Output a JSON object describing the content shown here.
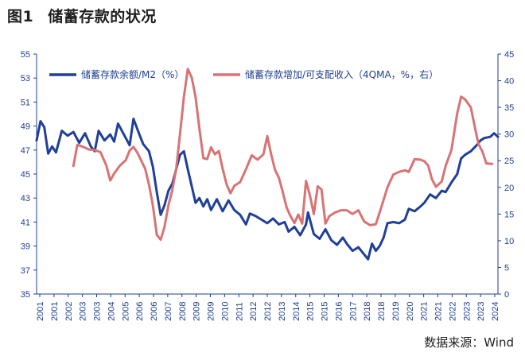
{
  "figure": {
    "number": "图1",
    "title": "储蓄存款的状况",
    "source": "数据来源：Wind"
  },
  "chart_data": {
    "type": "line",
    "x_ticks": [
      "2001",
      "2001",
      "2002",
      "2003",
      "2003",
      "2004",
      "2005",
      "2006",
      "2006",
      "2007",
      "2008",
      "2009",
      "2009",
      "2010",
      "2011",
      "2012",
      "2012",
      "2013",
      "2014",
      "2015",
      "2015",
      "2016",
      "2017",
      "2018",
      "2018",
      "2019",
      "2020",
      "2021",
      "2021",
      "2022",
      "2023",
      "2023",
      "2024"
    ],
    "y_left": {
      "ticks": [
        35,
        37,
        39,
        41,
        43,
        45,
        47,
        49,
        51,
        53,
        55
      ],
      "range": [
        35,
        55
      ]
    },
    "y_right": {
      "ticks": [
        0,
        5,
        10,
        15,
        20,
        25,
        30,
        35,
        40,
        45
      ],
      "range": [
        0,
        45
      ]
    },
    "x_range": [
      2001.0,
      2024.8
    ],
    "grid": false,
    "legend_placement": "top",
    "series": [
      {
        "name": "储蓄存款余额/M2（%）",
        "axis": "left",
        "color": "#1f3f99",
        "points": [
          [
            2001.0,
            47.8
          ],
          [
            2001.2,
            49.4
          ],
          [
            2001.4,
            48.9
          ],
          [
            2001.6,
            46.7
          ],
          [
            2001.8,
            47.3
          ],
          [
            2002.0,
            46.8
          ],
          [
            2002.3,
            48.6
          ],
          [
            2002.6,
            48.2
          ],
          [
            2002.9,
            48.5
          ],
          [
            2003.2,
            47.6
          ],
          [
            2003.5,
            48.4
          ],
          [
            2003.8,
            47.3
          ],
          [
            2004.0,
            46.9
          ],
          [
            2004.2,
            48.6
          ],
          [
            2004.5,
            47.8
          ],
          [
            2004.8,
            48.3
          ],
          [
            2005.0,
            47.7
          ],
          [
            2005.2,
            49.2
          ],
          [
            2005.5,
            48.3
          ],
          [
            2005.8,
            47.4
          ],
          [
            2006.0,
            49.6
          ],
          [
            2006.3,
            48.3
          ],
          [
            2006.5,
            47.5
          ],
          [
            2006.8,
            46.9
          ],
          [
            2007.0,
            45.6
          ],
          [
            2007.2,
            43.5
          ],
          [
            2007.4,
            41.6
          ],
          [
            2007.6,
            42.4
          ],
          [
            2007.8,
            43.6
          ],
          [
            2008.0,
            44.2
          ],
          [
            2008.2,
            45.4
          ],
          [
            2008.4,
            46.6
          ],
          [
            2008.6,
            46.9
          ],
          [
            2008.8,
            45.4
          ],
          [
            2009.0,
            44.0
          ],
          [
            2009.2,
            42.6
          ],
          [
            2009.4,
            43.0
          ],
          [
            2009.6,
            42.3
          ],
          [
            2009.8,
            42.9
          ],
          [
            2010.0,
            42.0
          ],
          [
            2010.3,
            42.9
          ],
          [
            2010.6,
            41.9
          ],
          [
            2010.9,
            42.8
          ],
          [
            2011.2,
            42.0
          ],
          [
            2011.5,
            41.6
          ],
          [
            2011.8,
            40.8
          ],
          [
            2012.0,
            41.7
          ],
          [
            2012.3,
            41.5
          ],
          [
            2012.6,
            41.2
          ],
          [
            2012.9,
            40.9
          ],
          [
            2013.2,
            41.3
          ],
          [
            2013.5,
            40.8
          ],
          [
            2013.8,
            41.0
          ],
          [
            2014.0,
            40.2
          ],
          [
            2014.3,
            40.6
          ],
          [
            2014.6,
            39.9
          ],
          [
            2014.9,
            40.8
          ],
          [
            2015.0,
            41.8
          ],
          [
            2015.3,
            40.0
          ],
          [
            2015.6,
            39.6
          ],
          [
            2015.9,
            40.4
          ],
          [
            2016.2,
            39.5
          ],
          [
            2016.5,
            39.1
          ],
          [
            2016.8,
            39.7
          ],
          [
            2017.0,
            39.2
          ],
          [
            2017.3,
            38.6
          ],
          [
            2017.6,
            38.9
          ],
          [
            2017.9,
            38.3
          ],
          [
            2018.1,
            37.9
          ],
          [
            2018.3,
            39.2
          ],
          [
            2018.5,
            38.6
          ],
          [
            2018.7,
            39.0
          ],
          [
            2018.9,
            39.7
          ],
          [
            2019.1,
            40.9
          ],
          [
            2019.4,
            41.0
          ],
          [
            2019.7,
            40.9
          ],
          [
            2020.0,
            41.2
          ],
          [
            2020.2,
            42.1
          ],
          [
            2020.5,
            41.9
          ],
          [
            2020.8,
            42.3
          ],
          [
            2021.0,
            42.6
          ],
          [
            2021.3,
            43.3
          ],
          [
            2021.6,
            43.0
          ],
          [
            2021.9,
            43.6
          ],
          [
            2022.1,
            43.5
          ],
          [
            2022.4,
            44.3
          ],
          [
            2022.7,
            45.0
          ],
          [
            2022.9,
            46.3
          ],
          [
            2023.1,
            46.6
          ],
          [
            2023.4,
            46.9
          ],
          [
            2023.7,
            47.4
          ],
          [
            2023.9,
            47.8
          ],
          [
            2024.1,
            48.0
          ],
          [
            2024.4,
            48.1
          ],
          [
            2024.6,
            48.4
          ],
          [
            2024.8,
            48.1
          ]
        ]
      },
      {
        "name": "储蓄存款增加/可支配收入（4QMA，%，右）",
        "axis": "right",
        "color": "#d97373",
        "points": [
          [
            2002.9,
            24.0
          ],
          [
            2003.1,
            28.0
          ],
          [
            2003.4,
            27.6
          ],
          [
            2003.7,
            27.1
          ],
          [
            2004.0,
            27.0
          ],
          [
            2004.3,
            26.6
          ],
          [
            2004.6,
            24.1
          ],
          [
            2004.8,
            21.3
          ],
          [
            2005.0,
            22.6
          ],
          [
            2005.3,
            24.1
          ],
          [
            2005.6,
            25.1
          ],
          [
            2005.8,
            26.9
          ],
          [
            2006.0,
            27.6
          ],
          [
            2006.2,
            26.5
          ],
          [
            2006.4,
            25.0
          ],
          [
            2006.6,
            23.5
          ],
          [
            2006.8,
            20.5
          ],
          [
            2007.0,
            16.6
          ],
          [
            2007.2,
            11.1
          ],
          [
            2007.4,
            10.2
          ],
          [
            2007.6,
            12.6
          ],
          [
            2007.8,
            16.6
          ],
          [
            2008.0,
            19.5
          ],
          [
            2008.2,
            23.5
          ],
          [
            2008.4,
            30.0
          ],
          [
            2008.6,
            37.0
          ],
          [
            2008.8,
            42.2
          ],
          [
            2009.0,
            40.6
          ],
          [
            2009.2,
            37.0
          ],
          [
            2009.4,
            31.0
          ],
          [
            2009.6,
            25.5
          ],
          [
            2009.8,
            25.3
          ],
          [
            2010.0,
            27.5
          ],
          [
            2010.2,
            26.2
          ],
          [
            2010.4,
            26.8
          ],
          [
            2010.6,
            23.5
          ],
          [
            2010.8,
            20.6
          ],
          [
            2011.0,
            18.9
          ],
          [
            2011.2,
            20.3
          ],
          [
            2011.5,
            21.0
          ],
          [
            2011.8,
            23.4
          ],
          [
            2012.1,
            26.0
          ],
          [
            2012.4,
            25.2
          ],
          [
            2012.7,
            26.2
          ],
          [
            2012.9,
            29.6
          ],
          [
            2013.1,
            26.2
          ],
          [
            2013.3,
            23.3
          ],
          [
            2013.5,
            21.8
          ],
          [
            2013.7,
            19.1
          ],
          [
            2013.9,
            16.2
          ],
          [
            2014.1,
            14.6
          ],
          [
            2014.3,
            13.3
          ],
          [
            2014.5,
            14.9
          ],
          [
            2014.7,
            13.2
          ],
          [
            2014.9,
            21.2
          ],
          [
            2015.1,
            18.5
          ],
          [
            2015.3,
            15.0
          ],
          [
            2015.5,
            20.2
          ],
          [
            2015.7,
            19.6
          ],
          [
            2015.9,
            13.2
          ],
          [
            2016.1,
            14.6
          ],
          [
            2016.4,
            15.3
          ],
          [
            2016.7,
            15.7
          ],
          [
            2017.0,
            15.7
          ],
          [
            2017.3,
            15.0
          ],
          [
            2017.6,
            15.7
          ],
          [
            2017.9,
            13.6
          ],
          [
            2018.2,
            12.9
          ],
          [
            2018.5,
            13.1
          ],
          [
            2018.8,
            16.5
          ],
          [
            2019.1,
            20.0
          ],
          [
            2019.4,
            22.4
          ],
          [
            2019.7,
            22.9
          ],
          [
            2020.0,
            23.2
          ],
          [
            2020.2,
            22.9
          ],
          [
            2020.5,
            25.3
          ],
          [
            2020.8,
            25.2
          ],
          [
            2021.0,
            24.9
          ],
          [
            2021.2,
            24.1
          ],
          [
            2021.4,
            21.5
          ],
          [
            2021.6,
            20.1
          ],
          [
            2021.9,
            21.1
          ],
          [
            2022.1,
            24.0
          ],
          [
            2022.4,
            27.0
          ],
          [
            2022.7,
            33.9
          ],
          [
            2022.9,
            37.0
          ],
          [
            2023.1,
            36.5
          ],
          [
            2023.4,
            35.0
          ],
          [
            2023.6,
            31.4
          ],
          [
            2023.8,
            28.1
          ],
          [
            2024.0,
            26.7
          ],
          [
            2024.2,
            24.5
          ],
          [
            2024.5,
            24.4
          ]
        ]
      }
    ]
  }
}
